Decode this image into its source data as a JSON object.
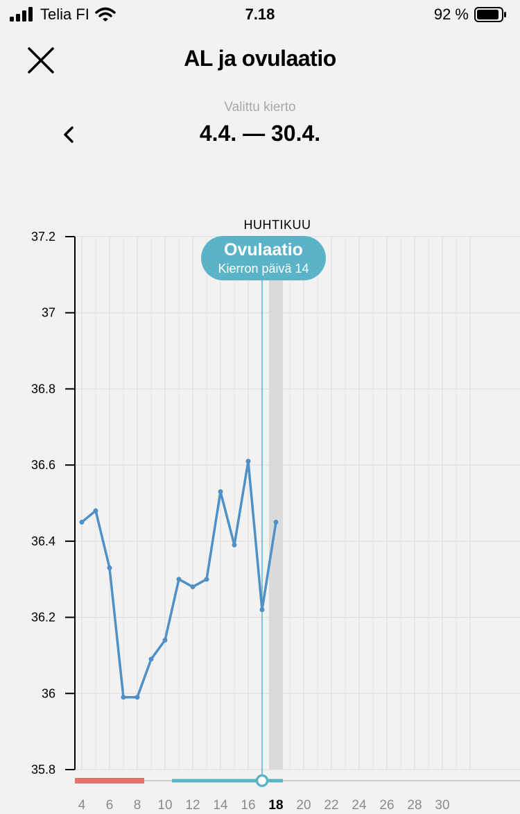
{
  "status": {
    "carrier": "Telia FI",
    "time": "7.18",
    "battery": "92 %"
  },
  "nav": {
    "title": "AL ja ovulaatio",
    "close_icon": "close-icon"
  },
  "cycle": {
    "label": "Valittu kierto",
    "range": "4.4. — 30.4.",
    "prev_icon": "chevron-left-icon"
  },
  "badge": {
    "title": "Ovulaatio",
    "subtitle": "Kierron päivä 14"
  },
  "colors": {
    "line": "#4f90c6",
    "accent": "#5ab3c6",
    "period": "#e5716d",
    "highlight": "#dadada"
  },
  "chart_data": {
    "type": "line",
    "title": "",
    "month_label": "HUHTIKUU",
    "xlabel": "",
    "ylabel": "",
    "xlim": [
      3,
      32
    ],
    "ylim": [
      35.8,
      37.2
    ],
    "yticks": [
      "37.2",
      "37",
      "36.8",
      "36.6",
      "36.4",
      "36.2",
      "36",
      "35.8"
    ],
    "xticks": [
      "4",
      "6",
      "8",
      "10",
      "12",
      "14",
      "16",
      "18",
      "20",
      "22",
      "24",
      "26",
      "28",
      "30"
    ],
    "selected_day": "18",
    "ovulation_day": 17,
    "highlight_day": 18,
    "period_days": [
      4,
      8
    ],
    "fertile_days": [
      11,
      18
    ],
    "grid": true,
    "series": [
      {
        "x": [
          4,
          5,
          6,
          7,
          8,
          9,
          10,
          11,
          12,
          13,
          14,
          15,
          16,
          17,
          18
        ],
        "values": [
          36.45,
          36.48,
          36.33,
          35.99,
          35.99,
          36.09,
          36.14,
          36.3,
          36.28,
          36.3,
          36.53,
          36.39,
          36.61,
          36.22,
          36.45
        ]
      }
    ]
  }
}
